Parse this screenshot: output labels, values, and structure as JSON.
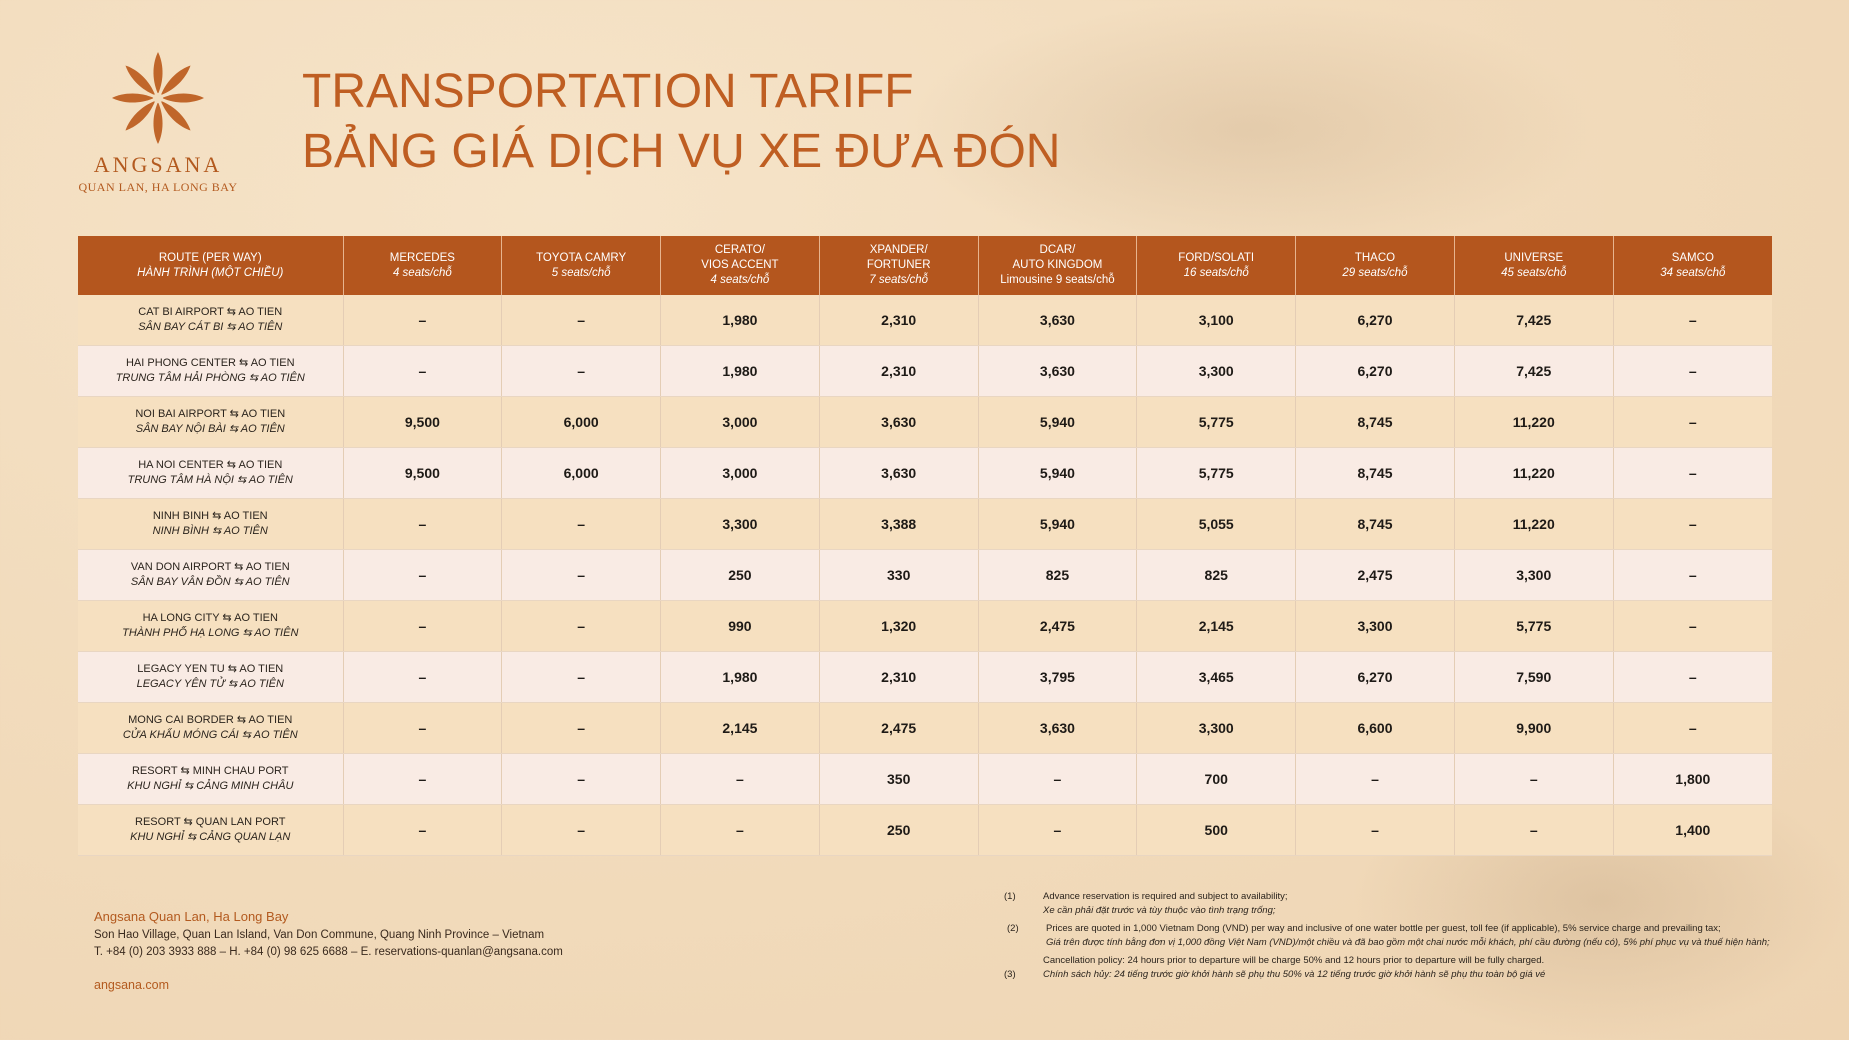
{
  "brand": {
    "name": "ANGSANA",
    "location": "QUAN LAN, HA LONG BAY"
  },
  "title": {
    "en": "TRANSPORTATION TARIFF",
    "vi": "BẢNG GIÁ DỊCH VỤ XE ĐƯA ĐÓN"
  },
  "table": {
    "headers": [
      {
        "line1": "ROUTE (PER WAY)",
        "line2": "HÀNH TRÌNH (MỘT CHIỀU)",
        "line3": ""
      },
      {
        "line1": "MERCEDES",
        "line2": "4 seats/chỗ",
        "line3": ""
      },
      {
        "line1": "TOYOTA CAMRY",
        "line2": "5 seats/chỗ",
        "line3": ""
      },
      {
        "line1": "CERATO/",
        "line2": "VIOS ACCENT",
        "line3": "4 seats/chỗ"
      },
      {
        "line1": "XPANDER/",
        "line2": "FORTUNER",
        "line3": "7 seats/chỗ"
      },
      {
        "line1": "DCAR/",
        "line2": "AUTO KINGDOM",
        "line3": "Limousine 9 seats/chỗ"
      },
      {
        "line1": "FORD/SOLATI",
        "line2": "16 seats/chỗ",
        "line3": ""
      },
      {
        "line1": "THACO",
        "line2": "29 seats/chỗ",
        "line3": ""
      },
      {
        "line1": "UNIVERSE",
        "line2": "45 seats/chỗ",
        "line3": ""
      },
      {
        "line1": "SAMCO",
        "line2": "34 seats/chỗ",
        "line3": ""
      }
    ],
    "rows": [
      {
        "en": "CAT BI AIRPORT ⇆ AO TIEN",
        "vi": "SÂN BAY CÁT BI ⇆ AO TIÊN",
        "prices": [
          "–",
          "–",
          "1,980",
          "2,310",
          "3,630",
          "3,100",
          "6,270",
          "7,425",
          "–"
        ]
      },
      {
        "en": "HAI PHONG CENTER ⇆ AO TIEN",
        "vi": "TRUNG TÂM HẢI PHÒNG ⇆ AO TIÊN",
        "prices": [
          "–",
          "–",
          "1,980",
          "2,310",
          "3,630",
          "3,300",
          "6,270",
          "7,425",
          "–"
        ]
      },
      {
        "en": "NOI BAI AIRPORT ⇆ AO TIEN",
        "vi": "SÂN BAY NỘI BÀI ⇆ AO TIÊN",
        "prices": [
          "9,500",
          "6,000",
          "3,000",
          "3,630",
          "5,940",
          "5,775",
          "8,745",
          "11,220",
          "–"
        ]
      },
      {
        "en": "HA NOI CENTER ⇆ AO TIEN",
        "vi": "TRUNG TÂM HÀ NỘI ⇆ AO TIÊN",
        "prices": [
          "9,500",
          "6,000",
          "3,000",
          "3,630",
          "5,940",
          "5,775",
          "8,745",
          "11,220",
          "–"
        ]
      },
      {
        "en": "NINH BINH ⇆ AO TIEN",
        "vi": "NINH BÌNH ⇆ AO TIÊN",
        "prices": [
          "–",
          "–",
          "3,300",
          "3,388",
          "5,940",
          "5,055",
          "8,745",
          "11,220",
          "–"
        ]
      },
      {
        "en": "VAN DON AIRPORT ⇆ AO TIEN",
        "vi": "SÂN BAY VÂN ĐỒN ⇆ AO TIÊN",
        "prices": [
          "–",
          "–",
          "250",
          "330",
          "825",
          "825",
          "2,475",
          "3,300",
          "–"
        ]
      },
      {
        "en": "HA LONG CITY ⇆ AO TIEN",
        "vi": "THÀNH PHỐ HẠ LONG ⇆ AO TIÊN",
        "prices": [
          "–",
          "–",
          "990",
          "1,320",
          "2,475",
          "2,145",
          "3,300",
          "5,775",
          "–"
        ]
      },
      {
        "en": "LEGACY YEN TU ⇆ AO TIEN",
        "vi": "LEGACY YÊN TỬ ⇆ AO TIÊN",
        "prices": [
          "–",
          "–",
          "1,980",
          "2,310",
          "3,795",
          "3,465",
          "6,270",
          "7,590",
          "–"
        ]
      },
      {
        "en": "MONG CAI BORDER ⇆ AO TIEN",
        "vi": "CỬA KHẨU MÓNG CÁI ⇆ AO TIÊN",
        "prices": [
          "–",
          "–",
          "2,145",
          "2,475",
          "3,630",
          "3,300",
          "6,600",
          "9,900",
          "–"
        ]
      },
      {
        "en": "RESORT ⇆ MINH CHAU PORT",
        "vi": "KHU NGHỈ ⇆ CẢNG MINH CHÂU",
        "prices": [
          "–",
          "–",
          "–",
          "350",
          "–",
          "700",
          "–",
          "–",
          "1,800"
        ]
      },
      {
        "en": "RESORT ⇆ QUAN LAN PORT",
        "vi": "KHU NGHỈ ⇆ CẢNG QUAN LẠN",
        "prices": [
          "–",
          "–",
          "–",
          "250",
          "–",
          "500",
          "–",
          "–",
          "1,400"
        ]
      }
    ]
  },
  "footer": {
    "hotel": "Angsana Quan Lan, Ha Long Bay",
    "address": "Son Hao Village, Quan Lan Island, Van Don Commune, Quang Ninh Province – Vietnam",
    "contact": "T. +84 (0) 203 3933 888 – H. +84 (0) 98 625 6688 – E. reservations-quanlan@angsana.com",
    "website": "angsana.com"
  },
  "notes": [
    {
      "num": "(1)",
      "en": "Advance reservation is required and subject to availability;",
      "vi": "Xe cần phải đặt trước và tùy thuộc vào tình trạng trống;"
    },
    {
      "num": "(2)",
      "en": "Prices are quoted in 1,000 Vietnam Dong (VND) per way and inclusive of one water bottle per guest, toll fee (if applicable), 5% service charge and prevailing tax;",
      "vi": "Giá trên được tính bằng đơn vị 1,000 đồng Việt Nam (VND)/một chiều và đã bao gồm một chai nước mỗi khách, phí cầu đường (nếu có), 5% phí phục vụ và thuế hiện hành;"
    },
    {
      "num": "(3)",
      "en": "Cancellation policy: 24 hours prior to departure will be charge 50% and 12 hours prior to departure will be fully charged.",
      "vi": "Chính sách hủy: 24 tiếng trước giờ khởi hành sẽ phụ thu 50% và 12 tiếng trước giờ khởi hành sẽ phụ thu toàn bộ giá vé"
    }
  ],
  "colors": {
    "accent": "#b4561e",
    "background": "#f2dcbd",
    "row_odd": "#f6e0c0",
    "row_even": "#f9ebe4"
  }
}
